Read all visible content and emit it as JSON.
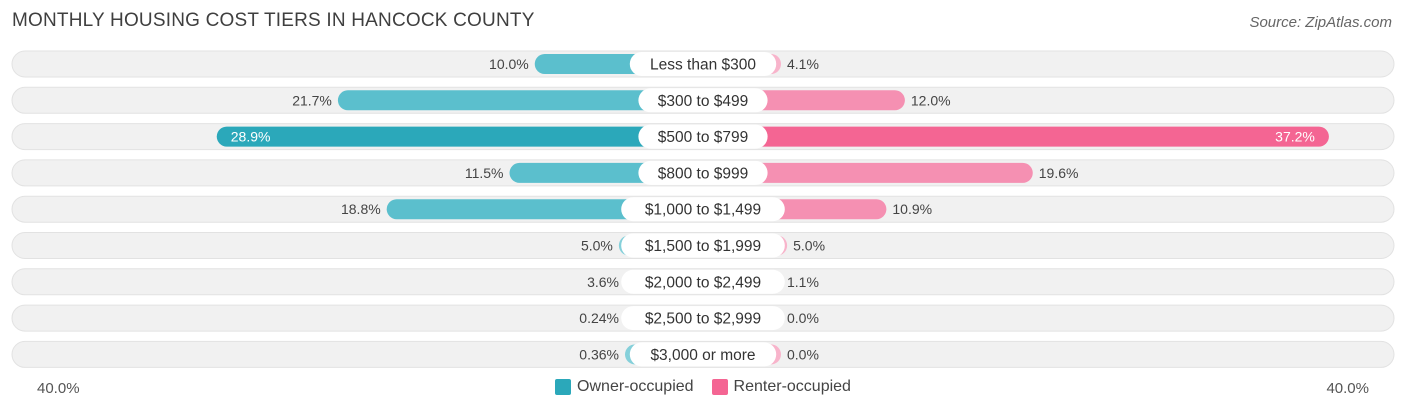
{
  "title": "MONTHLY HOUSING COST TIERS IN HANCOCK COUNTY",
  "source": "Source: ZipAtlas.com",
  "axis": {
    "left_label": "40.0%",
    "right_label": "40.0%"
  },
  "legend": {
    "owner_label": "Owner-occupied",
    "renter_label": "Renter-occupied"
  },
  "colors": {
    "owner_strong": "#2ba8ba",
    "owner_mid": "#5bbfcd",
    "owner_light": "#85d0da",
    "renter_strong": "#f46593",
    "renter_mid": "#f590b2",
    "renter_light": "#f8b4cb",
    "row_bg": "#f1f1f1"
  },
  "chart_data": {
    "type": "bar",
    "orientation": "diverging-horizontal",
    "xlim": [
      -40,
      40
    ],
    "categories": [
      "Less than $300",
      "$300 to $499",
      "$500 to $799",
      "$800 to $999",
      "$1,000 to $1,499",
      "$1,500 to $1,999",
      "$2,000 to $2,499",
      "$2,500 to $2,999",
      "$3,000 or more"
    ],
    "series": [
      {
        "name": "Owner-occupied",
        "values": [
          10.0,
          21.7,
          28.9,
          11.5,
          18.8,
          5.0,
          3.6,
          0.24,
          0.36
        ],
        "labels": [
          "10.0%",
          "21.7%",
          "28.9%",
          "11.5%",
          "18.8%",
          "5.0%",
          "3.6%",
          "0.24%",
          "0.36%"
        ]
      },
      {
        "name": "Renter-occupied",
        "values": [
          4.1,
          12.0,
          37.2,
          19.6,
          10.9,
          5.0,
          1.1,
          0.0,
          0.0
        ],
        "labels": [
          "4.1%",
          "12.0%",
          "37.2%",
          "19.6%",
          "10.9%",
          "5.0%",
          "1.1%",
          "0.0%",
          "0.0%"
        ]
      }
    ]
  }
}
